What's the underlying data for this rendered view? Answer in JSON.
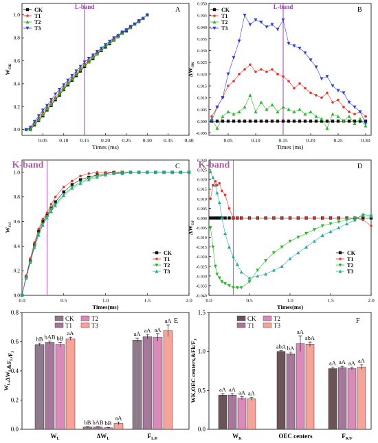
{
  "colors": {
    "CK": "#111111",
    "T1": "#e8312a",
    "T2": "#2ab52a",
    "T3": "#2b3fd4",
    "lband": "#a03cb4",
    "kband": "#b05aa8",
    "bar_CK": "#8f7a8c",
    "bar_T1": "#a5779a",
    "bar_T2": "#d98ab8",
    "bar_T3": "#f6a399",
    "bar_F_CK": "#6b5458",
    "teal": "#2aa6a0"
  },
  "chart_data": [
    {
      "panel": "A",
      "type": "line",
      "ylabel_main": "W",
      "ylabel_sub": "OK",
      "xlabel": "Times (ms)",
      "band_label": "L-band",
      "band_x": 0.15,
      "xlim": [
        0,
        0.4
      ],
      "ylim": [
        -0.05,
        1.1
      ],
      "xticks": [
        "0.05",
        "0.10",
        "0.15",
        "0.20",
        "0.25",
        "0.30",
        "0.35",
        "0.40"
      ],
      "yticks": [
        "0.0",
        "0.2",
        "0.4",
        "0.6",
        "0.8",
        "1.0"
      ],
      "legend": [
        "CK",
        "T1",
        "T2",
        "T3"
      ],
      "x": [
        0.01,
        0.02,
        0.03,
        0.04,
        0.05,
        0.06,
        0.07,
        0.08,
        0.09,
        0.1,
        0.11,
        0.12,
        0.13,
        0.14,
        0.15,
        0.16,
        0.17,
        0.18,
        0.19,
        0.2,
        0.21,
        0.22,
        0.23,
        0.24,
        0.25,
        0.26,
        0.27,
        0.28,
        0.29,
        0.3
      ],
      "series": [
        {
          "name": "CK",
          "values": [
            0.0,
            0.0,
            0.04,
            0.08,
            0.12,
            0.17,
            0.21,
            0.26,
            0.3,
            0.35,
            0.39,
            0.43,
            0.47,
            0.51,
            0.55,
            0.59,
            0.62,
            0.66,
            0.69,
            0.72,
            0.75,
            0.78,
            0.81,
            0.84,
            0.86,
            0.89,
            0.92,
            0.94,
            0.97,
            1.0
          ]
        },
        {
          "name": "T1",
          "values": [
            0.0,
            0.01,
            0.06,
            0.1,
            0.15,
            0.19,
            0.24,
            0.28,
            0.33,
            0.37,
            0.41,
            0.45,
            0.49,
            0.53,
            0.57,
            0.6,
            0.64,
            0.67,
            0.7,
            0.73,
            0.76,
            0.79,
            0.82,
            0.84,
            0.87,
            0.9,
            0.92,
            0.95,
            0.97,
            1.0
          ]
        },
        {
          "name": "T2",
          "values": [
            0.0,
            0.0,
            0.05,
            0.09,
            0.13,
            0.18,
            0.22,
            0.27,
            0.31,
            0.36,
            0.4,
            0.44,
            0.48,
            0.52,
            0.56,
            0.59,
            0.63,
            0.66,
            0.7,
            0.73,
            0.76,
            0.78,
            0.81,
            0.84,
            0.87,
            0.89,
            0.92,
            0.94,
            0.97,
            1.0
          ]
        },
        {
          "name": "T3",
          "values": [
            0.0,
            0.02,
            0.07,
            0.12,
            0.17,
            0.21,
            0.26,
            0.31,
            0.35,
            0.39,
            0.43,
            0.47,
            0.51,
            0.55,
            0.59,
            0.62,
            0.65,
            0.68,
            0.71,
            0.74,
            0.77,
            0.8,
            0.82,
            0.85,
            0.87,
            0.9,
            0.92,
            0.95,
            0.97,
            1.0
          ]
        }
      ]
    },
    {
      "panel": "B",
      "type": "line",
      "ylabel_main": "ΔW",
      "ylabel_sub": "OK",
      "xlabel": "Times (ms)",
      "band_label": "L-band",
      "band_x": 0.15,
      "xlim": [
        0.015,
        0.31
      ],
      "ylim": [
        -0.006,
        0.05
      ],
      "xticks": [
        "0.05",
        "0.10",
        "0.15",
        "0.20",
        "0.25",
        "0.30"
      ],
      "yticks": [
        "-0.005",
        "0.000",
        "0.005",
        "0.010",
        "0.015",
        "0.020",
        "0.025",
        "0.030",
        "0.035",
        "0.040",
        "0.045",
        "0.050"
      ],
      "legend": [
        "CK",
        "T1",
        "T2",
        "T3"
      ],
      "x": [
        0.02,
        0.03,
        0.04,
        0.05,
        0.06,
        0.07,
        0.08,
        0.09,
        0.1,
        0.11,
        0.12,
        0.13,
        0.14,
        0.15,
        0.16,
        0.17,
        0.18,
        0.19,
        0.2,
        0.21,
        0.22,
        0.23,
        0.24,
        0.25,
        0.26,
        0.27,
        0.28,
        0.29,
        0.3
      ],
      "series": [
        {
          "name": "CK",
          "values": [
            0,
            0,
            0,
            0,
            0,
            0,
            0,
            0,
            0,
            0,
            0,
            0,
            0,
            0,
            0,
            0,
            0,
            0,
            0,
            0,
            0,
            0,
            0,
            0,
            0,
            0,
            0,
            0,
            0
          ]
        },
        {
          "name": "T1",
          "values": [
            0.002,
            0.006,
            0.01,
            0.015,
            0.017,
            0.02,
            0.022,
            0.024,
            0.021,
            0.022,
            0.021,
            0.022,
            0.02,
            0.019,
            0.017,
            0.014,
            0.016,
            0.014,
            0.012,
            0.011,
            0.01,
            0.012,
            0.008,
            0.009,
            0.006,
            0.004,
            0.003,
            0.004,
            0.002
          ]
        },
        {
          "name": "T2",
          "values": [
            0.001,
            -0.003,
            0.002,
            0.004,
            0.003,
            0.004,
            0.006,
            0.011,
            0.004,
            0.008,
            0.005,
            0.007,
            0.004,
            0.006,
            0.005,
            0.004,
            0.005,
            0.003,
            0.004,
            0.002,
            0.001,
            -0.003,
            0.003,
            0.002,
            0.0,
            0.002,
            -0.001,
            0.001,
            -0.002
          ]
        },
        {
          "name": "T3",
          "values": [
            0.0,
            0.006,
            0.01,
            0.02,
            0.027,
            0.034,
            0.045,
            0.041,
            0.043,
            0.042,
            0.04,
            0.041,
            0.039,
            0.043,
            0.033,
            0.032,
            0.031,
            0.029,
            0.026,
            0.023,
            0.018,
            0.019,
            0.015,
            0.013,
            0.012,
            0.008,
            0.006,
            0.004,
            -0.001
          ]
        }
      ]
    },
    {
      "panel": "C",
      "type": "line",
      "ylabel_main": "W",
      "ylabel_sub": "OJ",
      "xlabel": "Times(ms)",
      "band_label": "K-band",
      "band_x": 0.3,
      "xlim": [
        0,
        2.0
      ],
      "ylim": [
        0,
        1.1
      ],
      "xticks": [
        "0.0",
        "0.5",
        "1.0",
        "1.5",
        "2.0"
      ],
      "yticks": [
        "0.0",
        "0.2",
        "0.4",
        "0.6",
        "0.8",
        "1.0"
      ],
      "legend": [
        "CK",
        "T1",
        "T2",
        "T3"
      ],
      "x": [
        0,
        0.05,
        0.1,
        0.15,
        0.2,
        0.25,
        0.3,
        0.35,
        0.4,
        0.5,
        0.6,
        0.7,
        0.8,
        0.9,
        1.0,
        1.1,
        1.2,
        1.3,
        1.4,
        1.5,
        1.6,
        1.7,
        1.8,
        1.9,
        2.0
      ],
      "series": [
        {
          "name": "CK",
          "values": [
            0,
            0.15,
            0.28,
            0.41,
            0.52,
            0.6,
            0.65,
            0.71,
            0.76,
            0.84,
            0.9,
            0.94,
            0.96,
            0.98,
            0.99,
            1.0,
            1.0,
            1.0,
            1.0,
            1.0,
            1.0,
            1.0,
            1.0,
            1.0,
            1.0
          ]
        },
        {
          "name": "T1",
          "values": [
            0,
            0.16,
            0.3,
            0.43,
            0.54,
            0.62,
            0.67,
            0.74,
            0.8,
            0.88,
            0.93,
            0.97,
            0.99,
            1.0,
            1.0,
            1.0,
            1.0,
            1.0,
            1.0,
            1.0,
            1.0,
            1.0,
            1.0,
            1.0,
            1.0
          ]
        },
        {
          "name": "T2",
          "values": [
            0,
            0.14,
            0.27,
            0.4,
            0.5,
            0.58,
            0.64,
            0.7,
            0.74,
            0.82,
            0.88,
            0.92,
            0.95,
            0.97,
            0.98,
            0.99,
            1.0,
            1.0,
            1.0,
            1.0,
            1.0,
            1.0,
            1.0,
            1.0,
            1.0
          ]
        },
        {
          "name": "T3",
          "values": [
            0,
            0.14,
            0.27,
            0.39,
            0.49,
            0.57,
            0.63,
            0.68,
            0.73,
            0.81,
            0.87,
            0.91,
            0.94,
            0.96,
            0.98,
            0.99,
            0.99,
            1.0,
            1.0,
            1.0,
            1.0,
            1.0,
            1.0,
            1.0,
            1.0
          ]
        }
      ]
    },
    {
      "panel": "D",
      "type": "line",
      "ylabel_main": "ΔW",
      "ylabel_sub": "OJ",
      "xlabel": "Times(ms)",
      "band_label": "K-band",
      "band_x": 0.3,
      "xlim": [
        0,
        2.0
      ],
      "ylim": [
        -0.04,
        0.03
      ],
      "xticks": [
        "0.0",
        "0.5",
        "1.0",
        "1.5",
        "2.0"
      ],
      "yticks": [
        "-0.040",
        "-0.035",
        "-0.030",
        "-0.025",
        "-0.020",
        "-0.015",
        "-0.010",
        "-0.005",
        "0.000",
        "0.005",
        "0.010",
        "0.015",
        "0.020",
        "0.025",
        "0.030"
      ],
      "legend": [
        "CK",
        "T1",
        "T2",
        "T3"
      ],
      "x": [
        0.02,
        0.05,
        0.08,
        0.1,
        0.13,
        0.16,
        0.2,
        0.25,
        0.3,
        0.35,
        0.4,
        0.5,
        0.6,
        0.7,
        0.8,
        0.9,
        1.0,
        1.1,
        1.2,
        1.3,
        1.4,
        1.5,
        1.6,
        1.7,
        1.8,
        1.9,
        2.0
      ],
      "series": [
        {
          "name": "CK",
          "values": [
            0,
            0,
            0,
            0,
            0,
            0,
            0,
            0,
            0,
            0,
            0,
            0,
            0,
            0,
            0,
            0,
            0,
            0,
            0,
            0,
            0,
            0,
            0,
            0,
            0,
            0,
            0
          ]
        },
        {
          "name": "T1",
          "values": [
            0.01,
            0.017,
            0.019,
            0.017,
            0.018,
            0.014,
            0.012,
            0.005,
            0.0,
            0.0,
            0.0,
            0.0,
            0.0,
            0.0,
            0.0,
            0.0,
            0.0,
            0.0,
            0.0,
            0.0,
            0.0,
            0.0,
            0.0,
            0.0,
            0.0,
            -0.001,
            -0.004
          ]
        },
        {
          "name": "T2",
          "values": [
            -0.005,
            -0.015,
            -0.025,
            -0.029,
            -0.031,
            -0.033,
            -0.034,
            -0.035,
            -0.036,
            -0.036,
            -0.036,
            -0.033,
            -0.027,
            -0.022,
            -0.018,
            -0.015,
            -0.012,
            -0.01,
            -0.008,
            -0.006,
            -0.004,
            -0.003,
            -0.002,
            -0.001,
            0.0,
            0.001,
            0.001
          ]
        },
        {
          "name": "T3",
          "values": [
            0.024,
            0.021,
            0.017,
            0.013,
            0.008,
            0.0,
            -0.008,
            -0.015,
            -0.02,
            -0.024,
            -0.028,
            -0.031,
            -0.03,
            -0.029,
            -0.027,
            -0.025,
            -0.021,
            -0.018,
            -0.015,
            -0.012,
            -0.009,
            -0.007,
            -0.005,
            -0.003,
            -0.001,
            0.002,
            0.001
          ]
        }
      ]
    },
    {
      "panel": "E",
      "type": "bar",
      "ylabel": "W_L,ΔW_L&F_L/F_J",
      "categories": [
        "W_L",
        "ΔW_L",
        "F_L/F_J"
      ],
      "ylim": [
        0,
        0.8
      ],
      "yticks": [
        "0.0",
        "0.2",
        "0.4",
        "0.6",
        "0.8"
      ],
      "legend": [
        "CK",
        "T1",
        "T2",
        "T3"
      ],
      "series": [
        {
          "name": "CK",
          "values": [
            0.58,
            0.015,
            0.61
          ],
          "errors": [
            0.01,
            0.003,
            0.015
          ],
          "labels": [
            "bB",
            "bB",
            "aA"
          ]
        },
        {
          "name": "T1",
          "values": [
            0.595,
            0.015,
            0.635
          ],
          "errors": [
            0.01,
            0.003,
            0.015
          ],
          "labels": [
            "bAB",
            "bAB",
            "aA"
          ]
        },
        {
          "name": "T2",
          "values": [
            0.58,
            0.01,
            0.63
          ],
          "errors": [
            0.015,
            0.003,
            0.025
          ],
          "labels": [
            "bB",
            "bB",
            "aA"
          ]
        },
        {
          "name": "T3",
          "values": [
            0.62,
            0.04,
            0.675
          ],
          "errors": [
            0.01,
            0.01,
            0.04
          ],
          "labels": [
            "aA",
            "aA",
            "aA"
          ]
        }
      ]
    },
    {
      "panel": "F",
      "type": "bar",
      "ylabel": "WK,OEC centers,&Fk/F_J",
      "categories": [
        "W_K",
        "OEC centers",
        "F_K/F_J"
      ],
      "ylim": [
        0,
        1.5
      ],
      "yticks": [
        "0.0",
        "0.5",
        "1.0",
        "1.5"
      ],
      "legend": [
        "CK",
        "T1",
        "T2",
        "T3"
      ],
      "series": [
        {
          "name": "CK",
          "values": [
            0.44,
            1.0,
            0.78
          ],
          "errors": [
            0.02,
            0.01,
            0.02
          ],
          "labels": [
            "aA",
            "abA",
            "aA"
          ]
        },
        {
          "name": "T1",
          "values": [
            0.44,
            0.97,
            0.79
          ],
          "errors": [
            0.02,
            0.02,
            0.02
          ],
          "labels": [
            "aA",
            "bA",
            "aA"
          ]
        },
        {
          "name": "T2",
          "values": [
            0.4,
            1.1,
            0.78
          ],
          "errors": [
            0.02,
            0.1,
            0.02
          ],
          "labels": [
            "aA",
            "aA",
            "aA"
          ]
        },
        {
          "name": "T3",
          "values": [
            0.39,
            1.09,
            0.8
          ],
          "errors": [
            0.02,
            0.03,
            0.03
          ],
          "labels": [
            "aA",
            "abA",
            "aA"
          ]
        }
      ]
    }
  ]
}
